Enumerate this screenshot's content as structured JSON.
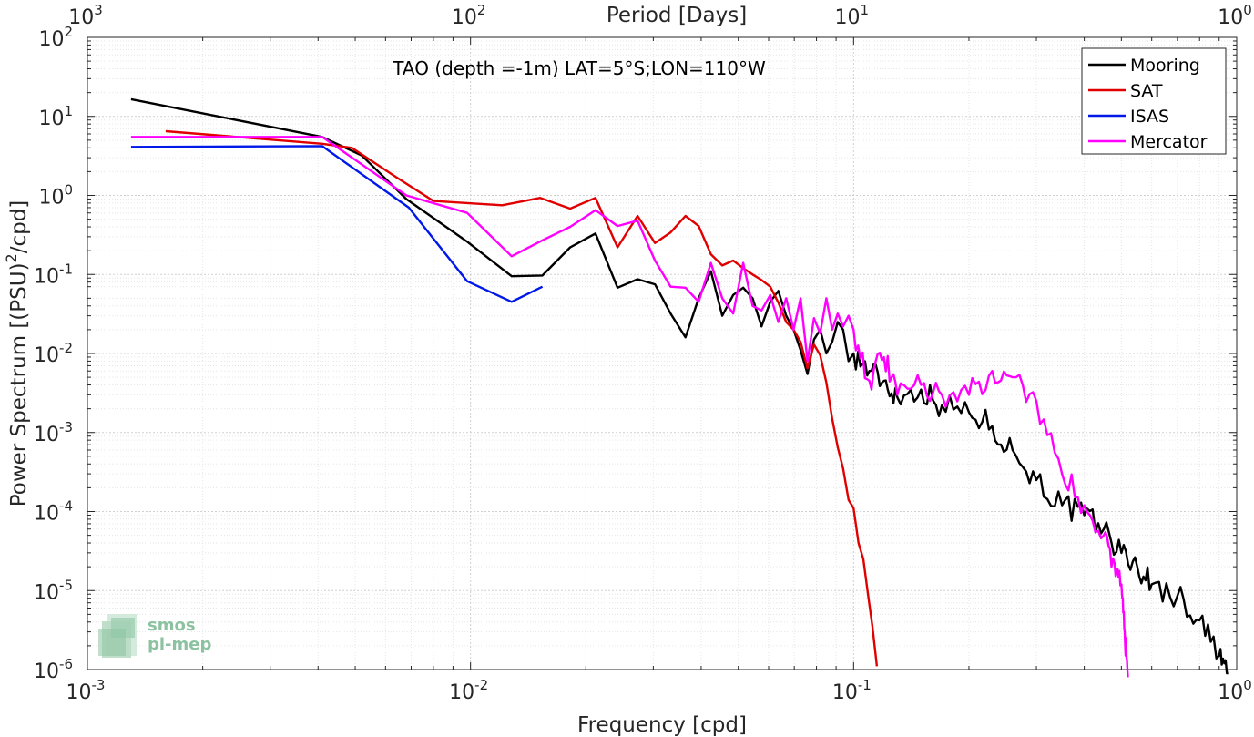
{
  "chart_data": {
    "type": "line",
    "title": "TAO (depth =-1m) LAT=5°S;LON=110°W",
    "xlabel": "Frequency [cpd]",
    "ylabel": "Power Spectrum [(PSU)",
    "ylabel_sup": "2",
    "ylabel_tail": "/cpd]",
    "top_xlabel": "Period [Days]",
    "xscale": "log",
    "yscale": "log",
    "xlim": [
      0.001,
      1
    ],
    "ylim": [
      1e-06,
      100
    ],
    "grid": true,
    "legend_position": "top-right",
    "x_ticks": [
      {
        "value": 0.001,
        "base": "10",
        "exp": "-3"
      },
      {
        "value": 0.01,
        "base": "10",
        "exp": "-2"
      },
      {
        "value": 0.1,
        "base": "10",
        "exp": "-1"
      },
      {
        "value": 1,
        "base": "10",
        "exp": "0"
      }
    ],
    "top_ticks": [
      {
        "value": 0.001,
        "base": "10",
        "exp": "3"
      },
      {
        "value": 0.01,
        "base": "10",
        "exp": "2"
      },
      {
        "value": 0.1,
        "base": "10",
        "exp": "1"
      },
      {
        "value": 1,
        "base": "10",
        "exp": "0"
      }
    ],
    "y_ticks": [
      {
        "value": 100,
        "base": "10",
        "exp": "2"
      },
      {
        "value": 10,
        "base": "10",
        "exp": "1"
      },
      {
        "value": 1,
        "base": "10",
        "exp": "0"
      },
      {
        "value": 0.1,
        "base": "10",
        "exp": "-1"
      },
      {
        "value": 0.01,
        "base": "10",
        "exp": "-2"
      },
      {
        "value": 0.001,
        "base": "10",
        "exp": "-3"
      },
      {
        "value": 0.0001,
        "base": "10",
        "exp": "-4"
      },
      {
        "value": 1e-05,
        "base": "10",
        "exp": "-5"
      },
      {
        "value": 1e-06,
        "base": "10",
        "exp": "-6"
      }
    ],
    "series": [
      {
        "name": "Mooring",
        "color": "#000000",
        "noise_tail": true,
        "x": [
          0.0013,
          0.0041,
          0.0052,
          0.0068,
          0.0098,
          0.0128,
          0.0154,
          0.0182,
          0.0212,
          0.0242,
          0.0273,
          0.0303,
          0.0333,
          0.0364,
          0.0394,
          0.0424,
          0.0454,
          0.0485,
          0.0515,
          0.0545,
          0.0575,
          0.0606,
          0.0636,
          0.0667,
          0.0697,
          0.0727,
          0.0758,
          0.0788,
          0.0818,
          0.0849,
          0.0879,
          0.0909,
          0.0939,
          0.097,
          0.1,
          0.11,
          0.12,
          0.13,
          0.15,
          0.17,
          0.2,
          0.23,
          0.26,
          0.3,
          0.35,
          0.4,
          0.45,
          0.5,
          0.55,
          0.6,
          0.7,
          0.8,
          0.9,
          0.95
        ],
        "y": [
          16.5,
          5.5,
          3.2,
          0.9,
          0.26,
          0.095,
          0.097,
          0.22,
          0.33,
          0.068,
          0.087,
          0.075,
          0.032,
          0.016,
          0.05,
          0.11,
          0.03,
          0.055,
          0.068,
          0.05,
          0.022,
          0.045,
          0.062,
          0.03,
          0.02,
          0.011,
          0.0055,
          0.015,
          0.02,
          0.01,
          0.014,
          0.025,
          0.02,
          0.008,
          0.01,
          0.006,
          0.0045,
          0.0028,
          0.0035,
          0.0022,
          0.0018,
          0.0012,
          0.0006,
          0.00025,
          0.00012,
          9e-05,
          6e-05,
          3e-05,
          2e-05,
          1.2e-05,
          8.5e-06,
          4.2e-06,
          1.5e-06,
          9e-07
        ]
      },
      {
        "name": "SAT",
        "color": "#e10000",
        "x": [
          0.0016,
          0.0041,
          0.0049,
          0.0064,
          0.008,
          0.0098,
          0.0121,
          0.0152,
          0.0182,
          0.0212,
          0.0242,
          0.0273,
          0.0303,
          0.0333,
          0.0364,
          0.0394,
          0.0424,
          0.0454,
          0.0485,
          0.0515,
          0.0545,
          0.0575,
          0.0606,
          0.0636,
          0.0667,
          0.0697,
          0.0727,
          0.0758,
          0.0788,
          0.0818,
          0.0849,
          0.0879,
          0.0909,
          0.0939,
          0.097,
          0.1,
          0.103,
          0.106,
          0.109,
          0.112,
          0.115
        ],
        "y": [
          6.5,
          4.5,
          4.0,
          1.7,
          0.85,
          0.8,
          0.75,
          0.93,
          0.68,
          0.93,
          0.22,
          0.55,
          0.25,
          0.34,
          0.55,
          0.41,
          0.18,
          0.13,
          0.15,
          0.12,
          0.1,
          0.085,
          0.07,
          0.044,
          0.025,
          0.02,
          0.014,
          0.0065,
          0.013,
          0.0095,
          0.0043,
          0.0015,
          0.00065,
          0.00035,
          0.00014,
          0.00011,
          4e-05,
          2.5e-05,
          9e-06,
          3.5e-06,
          1.1e-06
        ]
      },
      {
        "name": "ISAS",
        "color": "#0018e8",
        "x": [
          0.0013,
          0.0041,
          0.0069,
          0.0098,
          0.0128,
          0.0154
        ],
        "y": [
          4.1,
          4.2,
          0.7,
          0.082,
          0.045,
          0.07
        ]
      },
      {
        "name": "Mercator",
        "color": "#ff00ff",
        "noise_tail": true,
        "x": [
          0.0013,
          0.0041,
          0.0068,
          0.0098,
          0.0128,
          0.0154,
          0.0182,
          0.0212,
          0.0242,
          0.0273,
          0.0303,
          0.0333,
          0.0364,
          0.0394,
          0.0424,
          0.0454,
          0.0485,
          0.0515,
          0.0545,
          0.0575,
          0.0606,
          0.0636,
          0.0667,
          0.0697,
          0.0727,
          0.0758,
          0.0788,
          0.0818,
          0.0849,
          0.0879,
          0.0909,
          0.0939,
          0.097,
          0.1,
          0.11,
          0.12,
          0.13,
          0.15,
          0.17,
          0.2,
          0.23,
          0.26,
          0.3,
          0.35,
          0.4,
          0.45,
          0.48,
          0.5,
          0.51,
          0.52
        ],
        "y": [
          5.5,
          5.5,
          1.0,
          0.6,
          0.17,
          0.27,
          0.4,
          0.65,
          0.41,
          0.48,
          0.15,
          0.07,
          0.068,
          0.045,
          0.14,
          0.05,
          0.032,
          0.14,
          0.04,
          0.035,
          0.055,
          0.025,
          0.05,
          0.02,
          0.05,
          0.008,
          0.028,
          0.018,
          0.05,
          0.02,
          0.032,
          0.022,
          0.03,
          0.02,
          0.0045,
          0.009,
          0.003,
          0.004,
          0.003,
          0.003,
          0.006,
          0.005,
          0.0025,
          0.0003,
          0.00012,
          5e-05,
          2.2e-05,
          1.2e-05,
          3e-06,
          8e-07
        ]
      }
    ]
  },
  "logo": {
    "line1": "smos",
    "line2": "pi-mep"
  }
}
